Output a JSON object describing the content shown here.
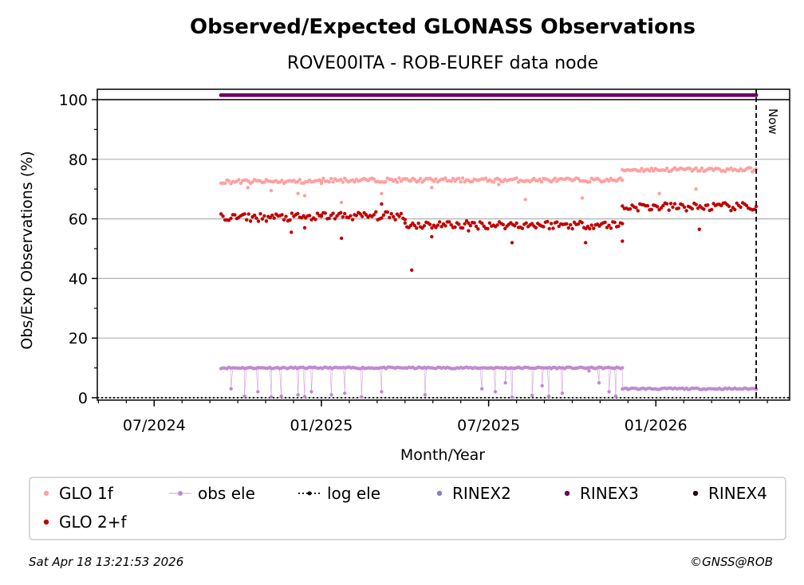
{
  "chart_data": {
    "type": "scatter",
    "title": "Observed/Expected GLONASS Observations",
    "subtitle": "ROVE00ITA - ROB-EUREF data node",
    "xlabel": "Month/Year",
    "ylabel": "Obs/Exp Observations (%)",
    "ylim": [
      0,
      100
    ],
    "y_ticks": [
      0,
      20,
      40,
      60,
      80,
      100
    ],
    "x_range_months": [
      2024.33,
      2026.4
    ],
    "x_ticks": [
      {
        "label": "07/2024",
        "t": 2024.5
      },
      {
        "label": "01/2025",
        "t": 2025.0
      },
      {
        "label": "07/2025",
        "t": 2025.5
      },
      {
        "label": "01/2026",
        "t": 2026.0
      }
    ],
    "now_marker": {
      "label": "Now",
      "t": 2026.3
    },
    "grid": true,
    "legend_position": "below",
    "series": [
      {
        "name": "GLO 1f",
        "color": "#ffa0a0",
        "style": "dots",
        "segments": [
          {
            "t0": 2024.7,
            "t1": 2025.0,
            "value": 72.5
          },
          {
            "t0": 2025.0,
            "t1": 2025.25,
            "value": 73
          },
          {
            "t0": 2025.25,
            "t1": 2025.9,
            "value": 73
          },
          {
            "t0": 2025.9,
            "t1": 2026.3,
            "value": 76.5
          }
        ],
        "outliers": [
          [
            2024.78,
            70.5
          ],
          [
            2024.85,
            69.5
          ],
          [
            2024.93,
            68.5
          ],
          [
            2024.95,
            67.8
          ],
          [
            2025.06,
            65.5
          ],
          [
            2025.18,
            68.5
          ],
          [
            2025.33,
            70.5
          ],
          [
            2025.53,
            71.5
          ],
          [
            2025.61,
            66.5
          ],
          [
            2025.78,
            67
          ],
          [
            2026.01,
            68.5
          ],
          [
            2026.12,
            70
          ]
        ]
      },
      {
        "name": "GLO 2+f",
        "color": "#bf0000",
        "style": "dots",
        "segments": [
          {
            "t0": 2024.7,
            "t1": 2025.0,
            "value": 60.5
          },
          {
            "t0": 2025.0,
            "t1": 2025.25,
            "value": 61
          },
          {
            "t0": 2025.25,
            "t1": 2025.9,
            "value": 58
          },
          {
            "t0": 2025.9,
            "t1": 2026.3,
            "value": 64
          }
        ],
        "outliers": [
          [
            2024.91,
            55.5
          ],
          [
            2024.95,
            57
          ],
          [
            2025.06,
            53.5
          ],
          [
            2025.18,
            65
          ],
          [
            2025.27,
            42.8
          ],
          [
            2025.33,
            54
          ],
          [
            2025.44,
            56
          ],
          [
            2025.57,
            52
          ],
          [
            2025.79,
            52
          ],
          [
            2025.9,
            52.5
          ],
          [
            2026.13,
            56.5
          ]
        ]
      },
      {
        "name": "obs ele",
        "color": "#c08ad0",
        "style": "line-dots",
        "segments": [
          {
            "t0": 2024.7,
            "t1": 2024.98,
            "value": 10
          },
          {
            "t0": 2024.98,
            "t1": 2025.9,
            "value": 10
          },
          {
            "t0": 2025.9,
            "t1": 2026.3,
            "value": 3
          }
        ],
        "dips": [
          [
            2024.73,
            3
          ],
          [
            2024.77,
            0.5
          ],
          [
            2024.81,
            2
          ],
          [
            2024.85,
            0.3
          ],
          [
            2024.88,
            0.5
          ],
          [
            2024.93,
            1
          ],
          [
            2024.95,
            0.4
          ],
          [
            2024.97,
            2
          ],
          [
            2025.03,
            1
          ],
          [
            2025.07,
            1.5
          ],
          [
            2025.12,
            0.3
          ],
          [
            2025.18,
            2
          ],
          [
            2025.31,
            1
          ],
          [
            2025.48,
            3
          ],
          [
            2025.52,
            2
          ],
          [
            2025.55,
            5
          ],
          [
            2025.57,
            0.2
          ],
          [
            2025.63,
            0.8
          ],
          [
            2025.66,
            4
          ],
          [
            2025.68,
            0.5
          ],
          [
            2025.72,
            1.5
          ],
          [
            2025.8,
            9
          ],
          [
            2025.83,
            5
          ],
          [
            2025.86,
            2
          ],
          [
            2025.88,
            0.5
          ]
        ]
      },
      {
        "name": "log ele",
        "color": "#000000",
        "style": "dotted-line",
        "value": 0
      },
      {
        "name": "RINEX2",
        "color": "#8a7cc0",
        "style": "dots",
        "segments": []
      },
      {
        "name": "RINEX3",
        "color": "#6b0060",
        "style": "dots",
        "segments": [
          {
            "t0": 2024.7,
            "t1": 2026.3,
            "value": 101.5
          }
        ]
      },
      {
        "name": "RINEX4",
        "color": "#2a0015",
        "style": "dots",
        "segments": []
      }
    ]
  },
  "legend": {
    "items": [
      {
        "label": "GLO 1f",
        "color": "#ffa0a0",
        "marker": "dot"
      },
      {
        "label": "obs ele",
        "color": "#c08ad0",
        "marker": "line-dot"
      },
      {
        "label": "log ele",
        "color": "#000000",
        "marker": "dotted"
      },
      {
        "label": "RINEX2",
        "color": "#8a7cc0",
        "marker": "dot"
      },
      {
        "label": "RINEX3",
        "color": "#6b0060",
        "marker": "dot"
      },
      {
        "label": "RINEX4",
        "color": "#2a0015",
        "marker": "dot"
      },
      {
        "label": "GLO 2+f",
        "color": "#bf0000",
        "marker": "dot"
      }
    ]
  },
  "footer": {
    "timestamp": "Sat Apr 18 13:21:53 2026",
    "credit": "©GNSS@ROB"
  }
}
